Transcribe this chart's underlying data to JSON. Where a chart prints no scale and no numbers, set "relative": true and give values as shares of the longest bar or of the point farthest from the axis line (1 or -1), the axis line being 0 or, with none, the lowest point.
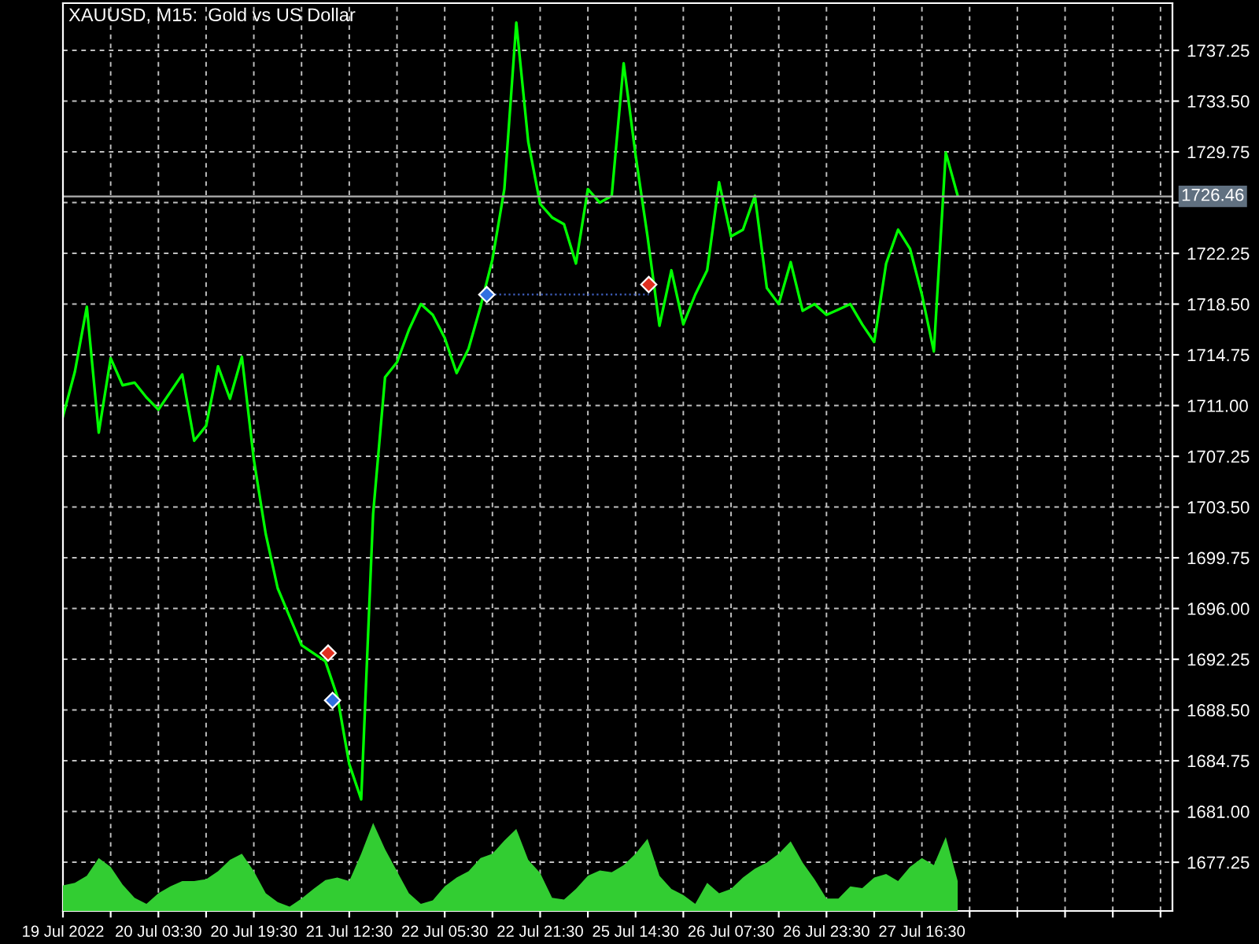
{
  "chart_data": [
    {
      "type": "line",
      "title": "XAUUSD, M15:  Gold vs US Dollar",
      "categories": [
        "19 Jul 2022",
        null,
        null,
        null,
        null,
        null,
        null,
        null,
        "20 Jul 03:30",
        null,
        null,
        null,
        null,
        null,
        null,
        null,
        "20 Jul 19:30",
        null,
        null,
        null,
        null,
        null,
        null,
        null,
        "21 Jul 12:30",
        null,
        null,
        null,
        null,
        null,
        null,
        null,
        "22 Jul 05:30",
        null,
        null,
        null,
        null,
        null,
        null,
        null,
        "22 Jul 21:30",
        null,
        null,
        null,
        null,
        null,
        null,
        null,
        "25 Jul 14:30",
        null,
        null,
        null,
        null,
        null,
        null,
        null,
        "26 Jul 07:30",
        null,
        null,
        null,
        null,
        null,
        null,
        null,
        "26 Jul 23:30",
        null,
        null,
        null,
        null,
        null,
        null,
        null,
        "27 Jul 16:30",
        null,
        null,
        null,
        null,
        null,
        null,
        null,
        null,
        null,
        null,
        null,
        null,
        null,
        null,
        null,
        null,
        null,
        null,
        null,
        null,
        null
      ],
      "ylim": [
        1673.65,
        1740.74
      ],
      "yticks": [
        {
          "value": 1677.25,
          "label": "1677.25"
        },
        {
          "value": 1681,
          "label": "1681.00"
        },
        {
          "value": 1684.75,
          "label": "1684.75"
        },
        {
          "value": 1688.5,
          "label": "1688.50"
        },
        {
          "value": 1692.25,
          "label": "1692.25"
        },
        {
          "value": 1696,
          "label": "1696.00"
        },
        {
          "value": 1699.75,
          "label": "1699.75"
        },
        {
          "value": 1703.5,
          "label": "1703.50"
        },
        {
          "value": 1707.25,
          "label": "1707.25"
        },
        {
          "value": 1711,
          "label": "1711.00"
        },
        {
          "value": 1714.75,
          "label": "1714.75"
        },
        {
          "value": 1718.5,
          "label": "1718.50"
        },
        {
          "value": 1722.25,
          "label": "1722.25"
        },
        {
          "value": 1726,
          "label": null
        },
        {
          "value": 1729.75,
          "label": "1729.75"
        },
        {
          "value": 1733.5,
          "label": "1733.50"
        },
        {
          "value": 1737.25,
          "label": "1737.25"
        }
      ],
      "grid": true,
      "ref_lines": [
        {
          "axis": "y",
          "value": 1726.46,
          "label": "1726.46",
          "color": "#a0a0a0"
        }
      ],
      "series": [
        {
          "color": "#00ff00",
          "values": [
            1710.2,
            1713.5,
            1718.3,
            1709.0,
            1714.5,
            1712.5,
            1712.7,
            1711.6,
            1710.7,
            1712.0,
            1713.3,
            1708.4,
            1709.5,
            1713.9,
            1711.5,
            1714.6,
            1707.0,
            1701.5,
            1697.5,
            1695.4,
            1693.3,
            1692.7,
            1692.1,
            1689.5,
            1684.5,
            1681.9,
            1703.0,
            1713.1,
            1714.2,
            1716.6,
            1718.5,
            1717.7,
            1716.0,
            1713.4,
            1715.2,
            1718.3,
            1721.8,
            1727.0,
            1739.3,
            1730.5,
            1725.9,
            1724.9,
            1724.4,
            1721.5,
            1727.0,
            1726.0,
            1726.5,
            1736.3,
            1729.5,
            1723.5,
            1716.9,
            1721.0,
            1717.0,
            1719.2,
            1721.0,
            1727.5,
            1723.5,
            1724.0,
            1726.5,
            1719.7,
            1718.5,
            1721.6,
            1718.0,
            1718.5,
            1717.7,
            1718.1,
            1718.5,
            1717.0,
            1715.7,
            1721.5,
            1724.0,
            1722.6,
            1719.2,
            1715.0,
            1729.7,
            1726.5,
            null,
            null,
            null,
            null,
            null,
            null,
            null,
            null,
            null,
            null,
            null,
            null,
            null,
            null,
            null,
            null,
            null,
            null
          ]
        }
      ]
    },
    {
      "type": "area",
      "relative": true,
      "categories": [
        null,
        null,
        null,
        null,
        null,
        null,
        null,
        null,
        null,
        null,
        null,
        null,
        null,
        null,
        null,
        null,
        null,
        null,
        null,
        null,
        null,
        null,
        null,
        null,
        null,
        null,
        null,
        null,
        null,
        null,
        null,
        null,
        null,
        null,
        null,
        null,
        null,
        null,
        null,
        null,
        null,
        null,
        null,
        null,
        null,
        null,
        null,
        null,
        null,
        null,
        null,
        null,
        null,
        null,
        null,
        null,
        null,
        null,
        null,
        null,
        null,
        null,
        null,
        null,
        null,
        null,
        null,
        null,
        null,
        null,
        null,
        null,
        null,
        null,
        null,
        null,
        null,
        null,
        null,
        null,
        null,
        null,
        null,
        null,
        null,
        null,
        null,
        null,
        null,
        null,
        null,
        null,
        null,
        null
      ],
      "series": [
        {
          "color": "#32cd32",
          "values": [
            0.29,
            0.32,
            0.4,
            0.6,
            0.5,
            0.3,
            0.15,
            0.08,
            0.2,
            0.28,
            0.34,
            0.34,
            0.36,
            0.45,
            0.58,
            0.65,
            0.45,
            0.2,
            0.1,
            0.05,
            0.14,
            0.25,
            0.35,
            0.38,
            0.34,
            0.65,
            1.0,
            0.7,
            0.45,
            0.2,
            0.08,
            0.12,
            0.28,
            0.38,
            0.45,
            0.6,
            0.65,
            0.8,
            0.93,
            0.58,
            0.43,
            0.15,
            0.13,
            0.25,
            0.4,
            0.46,
            0.44,
            0.52,
            0.65,
            0.82,
            0.4,
            0.25,
            0.18,
            0.08,
            0.32,
            0.2,
            0.25,
            0.38,
            0.48,
            0.55,
            0.65,
            0.79,
            0.55,
            0.36,
            0.14,
            0.14,
            0.28,
            0.26,
            0.38,
            0.42,
            0.34,
            0.5,
            0.6,
            0.52,
            0.84,
            0.34,
            null,
            null,
            null,
            null,
            null,
            null,
            null,
            null,
            null,
            null,
            null,
            null,
            null,
            null,
            null,
            null,
            null,
            null
          ]
        }
      ]
    }
  ]
}
